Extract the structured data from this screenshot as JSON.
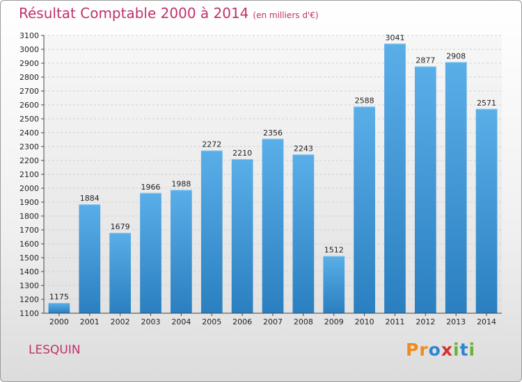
{
  "header": {
    "title": "Résultat Comptable 2000 à 2014",
    "subtitle": "(en milliers d'€)"
  },
  "footer": {
    "city": "LESQUIN",
    "logo": [
      "P",
      "r",
      "o",
      "x",
      "i",
      "t",
      "i"
    ]
  },
  "colors": {
    "title": "#c0306a",
    "bar_top": "#5aaee8",
    "bar_bottom": "#2a7fc0",
    "logo": [
      "#f08a1c",
      "#f08a1c",
      "#2c86d1",
      "#d5322e",
      "#69b236",
      "#2c86d1",
      "#69b236"
    ]
  },
  "chart_data": {
    "type": "bar",
    "categories": [
      "2000",
      "2001",
      "2002",
      "2003",
      "2004",
      "2005",
      "2006",
      "2007",
      "2008",
      "2009",
      "2010",
      "2011",
      "2012",
      "2013",
      "2014"
    ],
    "values": [
      1175,
      1884,
      1679,
      1966,
      1988,
      2272,
      2210,
      2356,
      2243,
      1512,
      2588,
      3041,
      2877,
      2908,
      2571
    ],
    "ylim": [
      1100,
      3100
    ],
    "ytick_step": 100,
    "grid": true,
    "legend": "none"
  }
}
